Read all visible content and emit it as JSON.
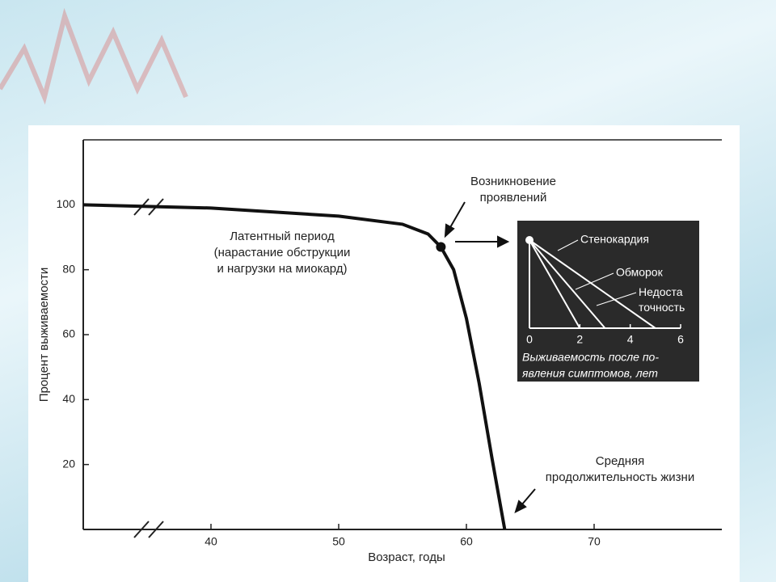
{
  "chart_data": [
    {
      "type": "line",
      "x": [
        30,
        40,
        50,
        55,
        57,
        58,
        59,
        60,
        61,
        62,
        63
      ],
      "series": [
        {
          "values": [
            100,
            99,
            96.5,
            94,
            91,
            87,
            80,
            65,
            45,
            22,
            0
          ],
          "color": "#111111"
        }
      ],
      "xlim": [
        30,
        80
      ],
      "xticks": [
        40,
        50,
        60,
        70
      ],
      "ylim": [
        0,
        120
      ],
      "yticks": [
        20,
        40,
        60,
        80,
        100
      ],
      "xlabel": "Возраст, годы",
      "ylabel": "Процент выживаемости",
      "annotations": [
        {
          "lines": [
            "Возникновение",
            "проявлений"
          ]
        },
        {
          "lines": [
            "Латентный период",
            "(нарастание обструкции",
            "и нагрузки на миокард)"
          ]
        },
        {
          "lines": [
            "Средняя",
            "продолжительность жизни"
          ]
        }
      ]
    },
    {
      "type": "line",
      "series": [
        {
          "name": "Стенокардия",
          "x": [
            0,
            5
          ],
          "values": [
            100,
            0
          ],
          "color": "#ffffff"
        },
        {
          "name": "Обморок",
          "x": [
            0,
            3
          ],
          "values": [
            100,
            0
          ],
          "color": "#ffffff"
        },
        {
          "name": "Недоста точность",
          "x": [
            0,
            2
          ],
          "values": [
            100,
            0
          ],
          "color": "#ffffff"
        }
      ],
      "xlim": [
        0,
        6
      ],
      "xticks": [
        0,
        2,
        4,
        6
      ],
      "ylim": [
        0,
        100
      ],
      "xlabel": [
        "Выживаемость после по-",
        "явления симптомов, лет"
      ]
    }
  ]
}
